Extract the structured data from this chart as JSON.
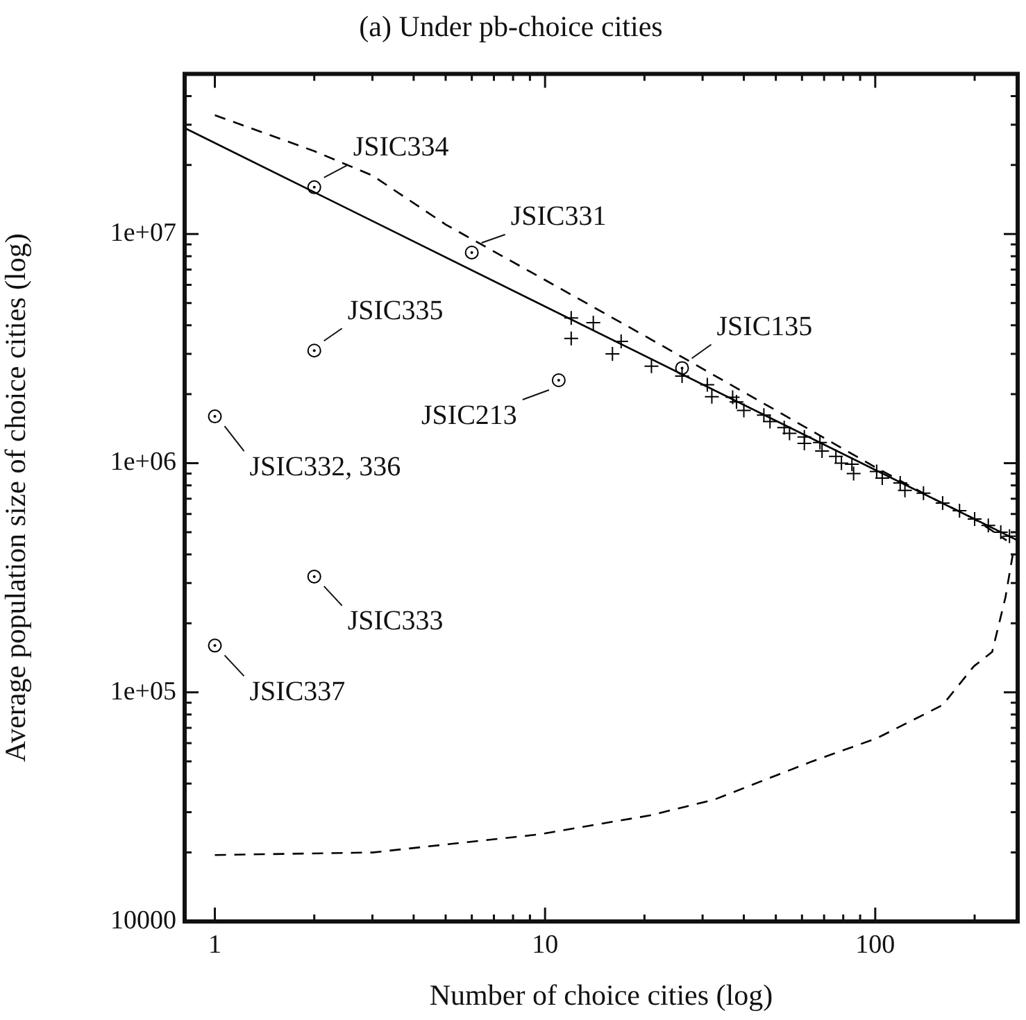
{
  "chart_data": {
    "type": "scatter",
    "title": "(a) Under pb-choice cities",
    "xlabel": "Number of choice cities (log)",
    "ylabel": "Average population size of choice cities (log)",
    "log": "xy",
    "grid": false,
    "legend": false,
    "xlim": [
      0.81,
      270
    ],
    "xticks": [
      1,
      {
        "value": 2,
        "label": null
      },
      {
        "value": 3,
        "label": null
      },
      {
        "value": 4,
        "label": null
      },
      {
        "value": 5,
        "label": null
      },
      {
        "value": 6,
        "label": null
      },
      {
        "value": 7,
        "label": null
      },
      {
        "value": 8,
        "label": null
      },
      {
        "value": 9,
        "label": null
      },
      10,
      {
        "value": 20,
        "label": null
      },
      {
        "value": 30,
        "label": null
      },
      {
        "value": 40,
        "label": null
      },
      {
        "value": 50,
        "label": null
      },
      {
        "value": 60,
        "label": null
      },
      {
        "value": 70,
        "label": null
      },
      {
        "value": 80,
        "label": null
      },
      {
        "value": 90,
        "label": null
      },
      100,
      {
        "value": 200,
        "label": null
      }
    ],
    "ylim": [
      10000,
      50000000
    ],
    "yticks": [
      10000,
      {
        "value": 20000,
        "label": null
      },
      {
        "value": 30000,
        "label": null
      },
      {
        "value": 40000,
        "label": null
      },
      {
        "value": 50000,
        "label": null
      },
      {
        "value": 60000,
        "label": null
      },
      {
        "value": 70000,
        "label": null
      },
      {
        "value": 80000,
        "label": null
      },
      {
        "value": 90000,
        "label": null
      },
      {
        "value": 100000,
        "label": "1e+05"
      },
      {
        "value": 200000,
        "label": null
      },
      {
        "value": 300000,
        "label": null
      },
      {
        "value": 400000,
        "label": null
      },
      {
        "value": 500000,
        "label": null
      },
      {
        "value": 600000,
        "label": null
      },
      {
        "value": 700000,
        "label": null
      },
      {
        "value": 800000,
        "label": null
      },
      {
        "value": 900000,
        "label": null
      },
      {
        "value": 1000000,
        "label": "1e+06"
      },
      {
        "value": 2000000,
        "label": null
      },
      {
        "value": 3000000,
        "label": null
      },
      {
        "value": 4000000,
        "label": null
      },
      {
        "value": 5000000,
        "label": null
      },
      {
        "value": 6000000,
        "label": null
      },
      {
        "value": 7000000,
        "label": null
      },
      {
        "value": 8000000,
        "label": null
      },
      {
        "value": 9000000,
        "label": null
      },
      {
        "value": 10000000,
        "label": "1e+07"
      },
      {
        "value": 20000000,
        "label": null
      },
      {
        "value": 30000000,
        "label": null
      },
      {
        "value": 40000000,
        "label": null
      }
    ],
    "series": [
      {
        "type": "line",
        "color": "#000000",
        "line_style": "solid",
        "marker": "none",
        "x": [
          0.81,
          270
        ],
        "values": [
          29000000,
          460000
        ]
      },
      {
        "type": "line",
        "color": "#000000",
        "line_style": "dashed",
        "marker": "none",
        "x": [
          1,
          2,
          3,
          5,
          10,
          20,
          50,
          100,
          150,
          200,
          250
        ],
        "values": [
          33000000,
          23000000,
          18000000,
          11000000,
          6300000,
          3600000,
          1700000,
          960000,
          700000,
          570000,
          460000
        ]
      },
      {
        "type": "line",
        "color": "#000000",
        "line_style": "dashed",
        "marker": "none",
        "x": [
          1,
          3,
          9.6,
          20.7,
          32.5,
          64.5,
          101,
          160,
          199,
          226,
          248,
          261
        ],
        "values": [
          19500,
          20000,
          24000,
          29000,
          34000,
          50000,
          63000,
          88000,
          130000,
          150000,
          260000,
          400000
        ]
      },
      {
        "color": "#000000",
        "marker": "cross",
        "x": [
          12,
          12,
          14,
          17,
          16,
          21,
          26,
          31,
          32,
          37,
          38,
          40,
          46,
          48,
          53,
          55,
          61,
          61,
          68,
          69,
          76,
          79,
          85,
          86,
          101,
          105,
          119,
          123,
          140,
          160,
          180,
          200,
          220,
          240,
          255
        ],
        "values": [
          4300000,
          3500000,
          4100000,
          3400000,
          3000000,
          2650000,
          2400000,
          2200000,
          1950000,
          1940000,
          1850000,
          1700000,
          1620000,
          1520000,
          1430000,
          1350000,
          1300000,
          1220000,
          1230000,
          1130000,
          1070000,
          1000000,
          990000,
          900000,
          920000,
          860000,
          820000,
          760000,
          740000,
          670000,
          620000,
          570000,
          535000,
          500000,
          480000
        ]
      },
      {
        "color": "#000000",
        "marker": "circle",
        "x": [
          2,
          6,
          2,
          11,
          26,
          1,
          2,
          1
        ],
        "values": [
          16000000,
          8300000,
          3100000,
          2300000,
          2600000,
          1600000,
          320000,
          160000
        ]
      }
    ],
    "annotations": [
      {
        "text": "JSIC334",
        "x": 2,
        "y": 16000000
      },
      {
        "text": "JSIC331",
        "x": 6,
        "y": 8300000
      },
      {
        "text": "JSIC335",
        "x": 2,
        "y": 3100000
      },
      {
        "text": "JSIC213",
        "x": 11,
        "y": 2300000
      },
      {
        "text": "JSIC135",
        "x": 26,
        "y": 2600000
      },
      {
        "text": "JSIC332, 336",
        "x": 1,
        "y": 1600000
      },
      {
        "text": "JSIC333",
        "x": 2,
        "y": 320000
      },
      {
        "text": "JSIC337",
        "x": 1,
        "y": 160000
      }
    ]
  }
}
